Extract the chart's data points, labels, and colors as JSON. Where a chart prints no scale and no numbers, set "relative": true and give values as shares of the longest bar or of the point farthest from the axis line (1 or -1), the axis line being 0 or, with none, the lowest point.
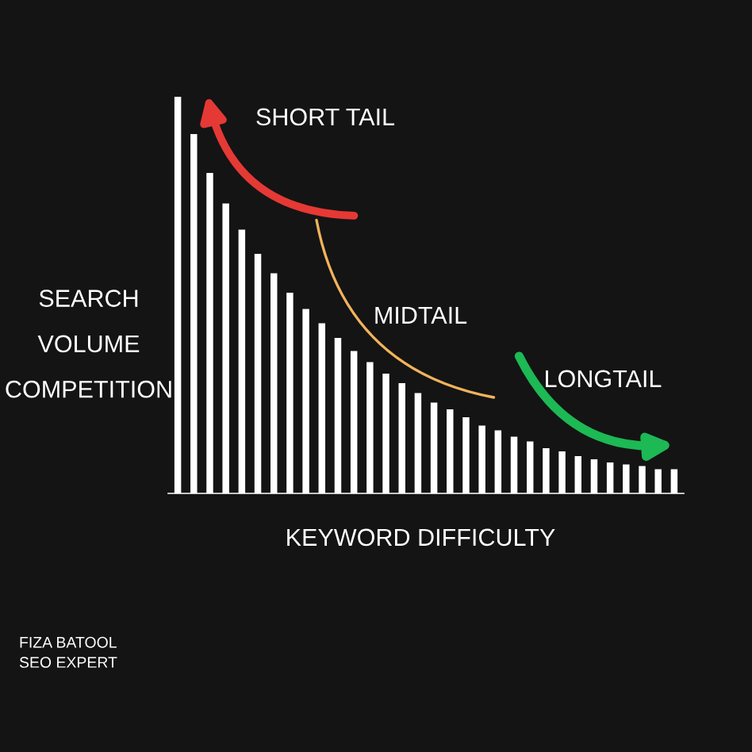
{
  "chart_data": {
    "type": "bar",
    "relative": true,
    "color": "#ffffff",
    "xlabel": "KEYWORD DIFFICULTY",
    "ylabel": "SEARCH\nVOLUME\nCOMPETITION",
    "categories": [
      null,
      null,
      null,
      null,
      null,
      null,
      null,
      null,
      null,
      null,
      null,
      null,
      null,
      null,
      null,
      null,
      null,
      null,
      null,
      null,
      null,
      null,
      null,
      null,
      null,
      null,
      null,
      null,
      null,
      null,
      null,
      null
    ],
    "values": [
      1,
      0.906,
      0.808,
      0.731,
      0.665,
      0.604,
      0.555,
      0.506,
      0.465,
      0.429,
      0.392,
      0.359,
      0.331,
      0.302,
      0.278,
      0.253,
      0.229,
      0.212,
      0.192,
      0.171,
      0.159,
      0.143,
      0.131,
      0.114,
      0.106,
      0.094,
      0.086,
      0.078,
      0.073,
      0.069,
      0.061,
      0.061
    ],
    "annotations": [
      "SHORT TAIL",
      "MIDTAIL",
      "LONGTAIL",
      "FIZA BATOOL\nSEO EXPERT"
    ],
    "grid": false,
    "legend": false
  }
}
